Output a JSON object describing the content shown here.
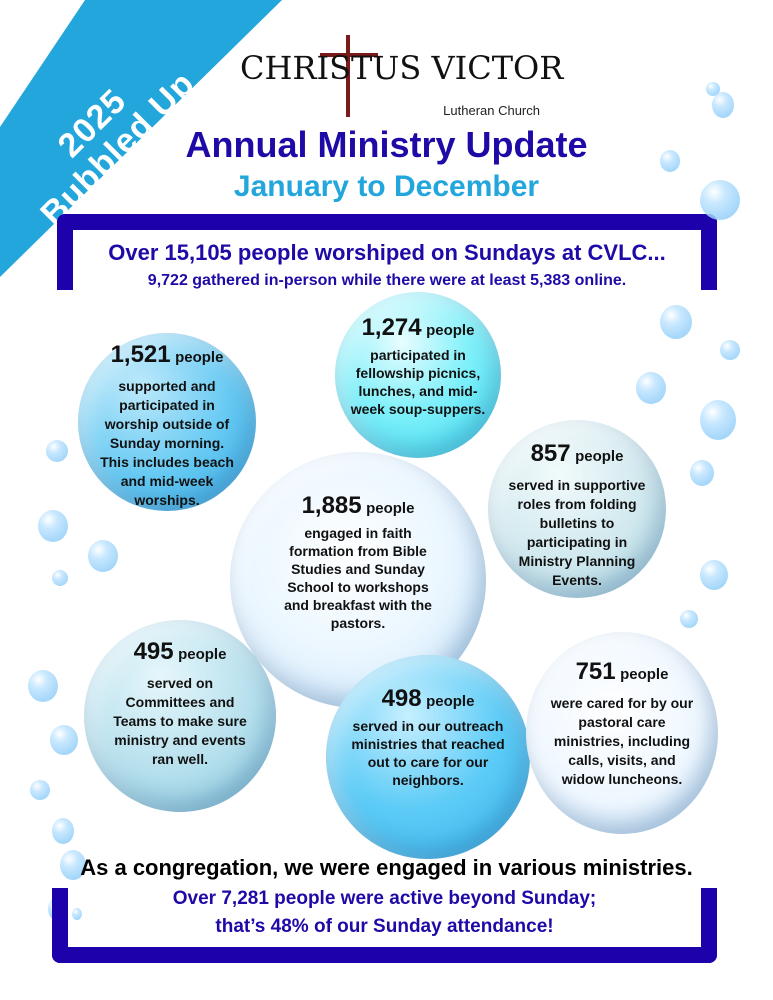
{
  "banner": {
    "year": "2025",
    "theme": "Bubbled Up"
  },
  "logo": {
    "name": "CHRISTUS VICTOR",
    "sub": "Lutheran Church"
  },
  "header": {
    "title": "Annual Ministry Update",
    "subtitle": "January to December"
  },
  "worship": {
    "headline": "Over 15,105 people worshiped on Sundays at CVLC...",
    "detail": "9,722 gathered in-person while there were at least 5,383 online."
  },
  "bubbles": [
    {
      "number": "1,521",
      "unit": "people",
      "text": "supported and participated in worship outside of Sunday morning. This includes beach and mid-week worships."
    },
    {
      "number": "1,274",
      "unit": "people",
      "text": "participated in fellowship picnics, lunches, and mid-week soup-suppers."
    },
    {
      "number": "857",
      "unit": "people",
      "text": "served in supportive roles from folding bulletins to participating in Ministry Planning Events."
    },
    {
      "number": "1,885",
      "unit": "people",
      "text": "engaged in faith formation from Bible Studies and Sunday School to workshops and breakfast with the pastors."
    },
    {
      "number": "495",
      "unit": "people",
      "text": "served on Committees and Teams to make sure ministry and events ran well."
    },
    {
      "number": "498",
      "unit": "people",
      "text": "served in our outreach ministries that reached out to care for our neighbors."
    },
    {
      "number": "751",
      "unit": "people",
      "text": "were cared for by our pastoral care ministries, including calls, visits, and widow luncheons."
    }
  ],
  "summary": {
    "statement": "As a congregation, we were engaged in various ministries.",
    "line1": "Over 7,281 people were active beyond Sunday;",
    "line2": "that’s 48% of our Sunday attendance!"
  },
  "colors": {
    "navy": "#1d02ab",
    "sky": "#22a6dc"
  }
}
